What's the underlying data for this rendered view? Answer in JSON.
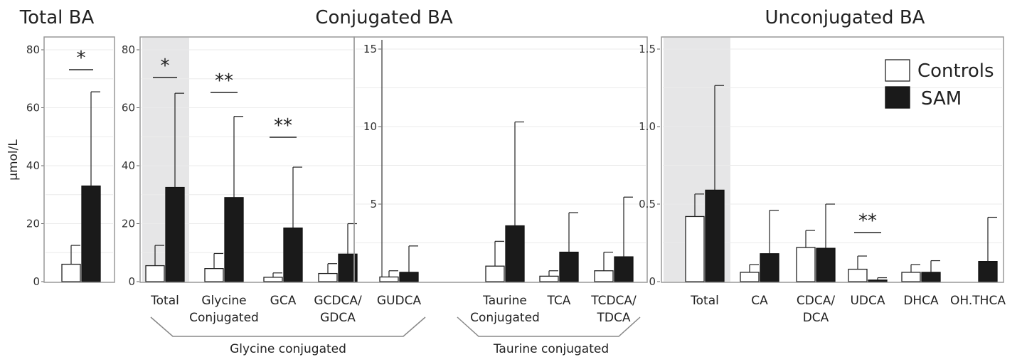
{
  "ylabel": "µmol/L",
  "colors": {
    "controls": "#ffffff",
    "sam": "#1a1a1a",
    "highlight": "#e6e6e7"
  },
  "legend": {
    "controls": "Controls",
    "sam": "SAM"
  },
  "group_labels": {
    "glycine": "Glycine conjugated",
    "taurine": "Taurine conjugated"
  },
  "titles": {
    "total": "Total BA",
    "conjugated": "Conjugated BA",
    "unconjugated": "Unconjugated BA"
  },
  "chart_data": [
    {
      "type": "bar",
      "title": "Total BA",
      "ylabel": "µmol/L",
      "ylim": [
        0,
        80
      ],
      "yticks": [
        0,
        20,
        40,
        60,
        80
      ],
      "categories": [
        ""
      ],
      "series": [
        {
          "name": "Controls",
          "values": [
            6
          ],
          "errors": [
            12.5
          ]
        },
        {
          "name": "SAM",
          "values": [
            33
          ],
          "errors": [
            65.5
          ]
        }
      ],
      "significance": [
        "*"
      ]
    },
    {
      "type": "bar",
      "title": "Conjugated BA",
      "ylim": [
        0,
        80
      ],
      "yticks": [
        0,
        20,
        40,
        60,
        80
      ],
      "categories": [
        "Total",
        "Glycine Conjugated",
        "GCA",
        "GCDCA/ GDCA"
      ],
      "series": [
        {
          "name": "Controls",
          "values": [
            5.5,
            4.5,
            1.5,
            2.8
          ],
          "errors": [
            12.5,
            9.7,
            3.0,
            6.2
          ]
        },
        {
          "name": "SAM",
          "values": [
            32.5,
            29,
            18.5,
            9.5
          ],
          "errors": [
            65,
            57,
            39.5,
            20
          ]
        }
      ],
      "significance": [
        "*",
        "**",
        "**",
        ""
      ]
    },
    {
      "type": "bar",
      "ylim": [
        0,
        15
      ],
      "yticks": [
        5,
        10,
        15
      ],
      "categories": [
        "GUDCA",
        "Taurine Conjugated",
        "TCA",
        "TCDCA/ TDCA"
      ],
      "series": [
        {
          "name": "Controls",
          "values": [
            0.3,
            1.0,
            0.35,
            0.7
          ],
          "errors": [
            0.7,
            2.6,
            0.7,
            1.9
          ]
        },
        {
          "name": "SAM",
          "values": [
            0.6,
            3.6,
            1.9,
            1.6
          ],
          "errors": [
            2.3,
            10.3,
            4.45,
            5.45
          ]
        }
      ]
    },
    {
      "type": "bar",
      "title": "Unconjugated BA",
      "ylim": [
        0,
        1.5
      ],
      "yticks": [
        "0",
        "0.5",
        "1.0",
        "1.5"
      ],
      "categories": [
        "Total",
        "CA",
        "CDCA/ DCA",
        "UDCA",
        "DHCA",
        "OH.THCA"
      ],
      "series": [
        {
          "name": "Controls",
          "values": [
            0.42,
            0.06,
            0.22,
            0.08,
            0.06,
            0
          ],
          "errors": [
            0.565,
            0.11,
            0.33,
            0.165,
            0.11,
            0
          ]
        },
        {
          "name": "SAM",
          "values": [
            0.59,
            0.18,
            0.215,
            0.01,
            0.06,
            0.13
          ],
          "errors": [
            1.265,
            0.46,
            0.5,
            0.025,
            0.135,
            0.415
          ]
        }
      ],
      "significance": [
        "",
        "",
        "",
        "**",
        "",
        ""
      ]
    }
  ]
}
